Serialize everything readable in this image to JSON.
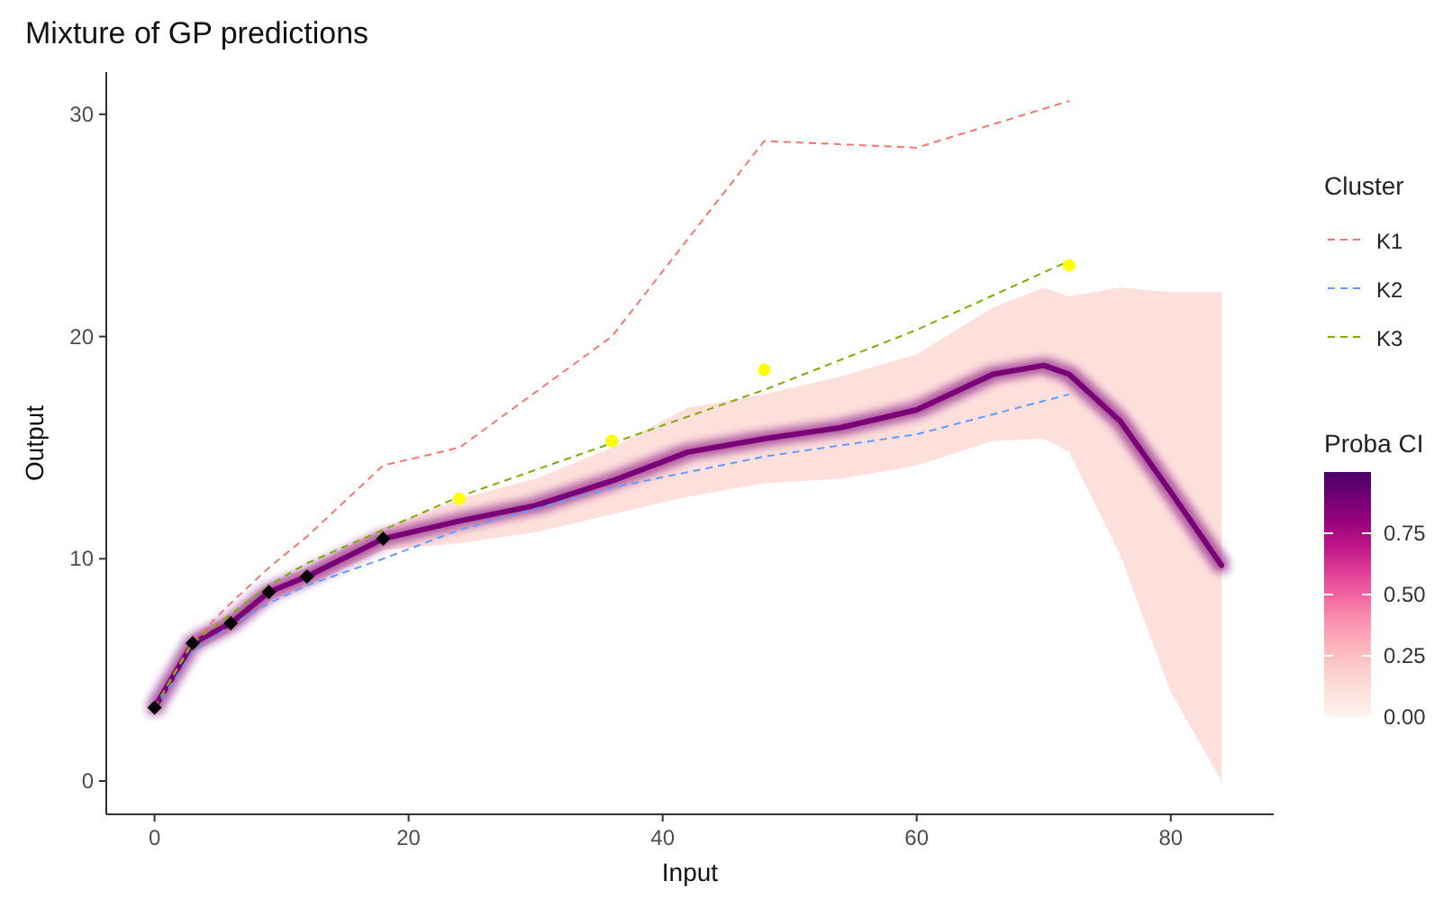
{
  "chart_data": {
    "type": "line",
    "title": "Mixture of GP predictions",
    "xlabel": "Input",
    "ylabel": "Output",
    "legend_title": "Cluster",
    "clabel": "Proba CI",
    "xlim": [
      -3.8,
      88.1
    ],
    "ylim": [
      -1.5,
      31.9
    ],
    "xticks": [
      0,
      20,
      40,
      60,
      80
    ],
    "yticks": [
      0,
      10,
      20,
      30
    ],
    "grid": false,
    "legend": "right",
    "line_style": "dashed",
    "marker": "none",
    "clim": [
      0,
      1
    ],
    "cticks": [
      {
        "value": 0,
        "label": "0.00"
      },
      {
        "value": 0.25,
        "label": "0.25"
      },
      {
        "value": 0.5,
        "label": "0.50"
      },
      {
        "value": 0.75,
        "label": "0.75"
      }
    ],
    "series": [
      {
        "color": "#7a0177",
        "line_style": "solid",
        "x": [
          0,
          3,
          6,
          9,
          12,
          18,
          24,
          30,
          36,
          42,
          48,
          54,
          60,
          66,
          70,
          72,
          76,
          80,
          84
        ],
        "values": [
          3.3,
          6.2,
          7.1,
          8.5,
          9.2,
          10.9,
          11.7,
          12.4,
          13.5,
          14.8,
          15.4,
          15.9,
          16.7,
          18.3,
          18.7,
          18.3,
          16.2,
          13,
          9.7
        ],
        "lower": [
          3,
          5.8,
          6.7,
          8.1,
          8.8,
          10.4,
          10.7,
          11.2,
          12,
          12.8,
          13.4,
          13.6,
          14.2,
          15.3,
          15.4,
          14.8,
          10.2,
          4,
          0
        ],
        "upper": [
          3.6,
          6.6,
          7.5,
          8.9,
          9.6,
          11.4,
          12.7,
          13.6,
          15,
          16.8,
          17.4,
          18.2,
          19.2,
          21.3,
          22.2,
          21.8,
          22.2,
          22,
          22
        ]
      },
      {
        "name": "K1",
        "color": "#f8766d",
        "x": [
          0,
          3,
          6,
          9,
          12,
          18,
          24,
          36,
          48,
          60,
          72
        ],
        "values": [
          3.3,
          6.3,
          8,
          9.6,
          11,
          14.2,
          15,
          20,
          28.8,
          28.5,
          30.6
        ]
      },
      {
        "name": "K2",
        "color": "#619cff",
        "x": [
          0,
          3,
          6,
          9,
          12,
          18,
          24,
          36,
          48,
          60,
          72
        ],
        "values": [
          3.2,
          5.8,
          7,
          8,
          8.8,
          10,
          11.3,
          13.2,
          14.6,
          15.6,
          17.4
        ]
      },
      {
        "name": "K3",
        "color": "#7cae00",
        "x": [
          0,
          3,
          6,
          9,
          12,
          18,
          24,
          36,
          48,
          60,
          72
        ],
        "values": [
          3.3,
          6.2,
          7.5,
          8.8,
          9.8,
          11.3,
          12.8,
          15.2,
          17.6,
          20.3,
          23.4
        ]
      },
      {
        "type": "scatter",
        "color": "#000000",
        "marker": "diamond",
        "x": [
          0,
          3,
          6,
          9,
          12,
          18
        ],
        "values": [
          3.3,
          6.2,
          7.1,
          8.5,
          9.2,
          10.9
        ]
      },
      {
        "type": "scatter",
        "color": "#ffff00",
        "marker": "circle",
        "x": [
          24,
          36,
          48,
          72
        ],
        "values": [
          12.7,
          15.3,
          18.5,
          23.2
        ]
      }
    ]
  }
}
